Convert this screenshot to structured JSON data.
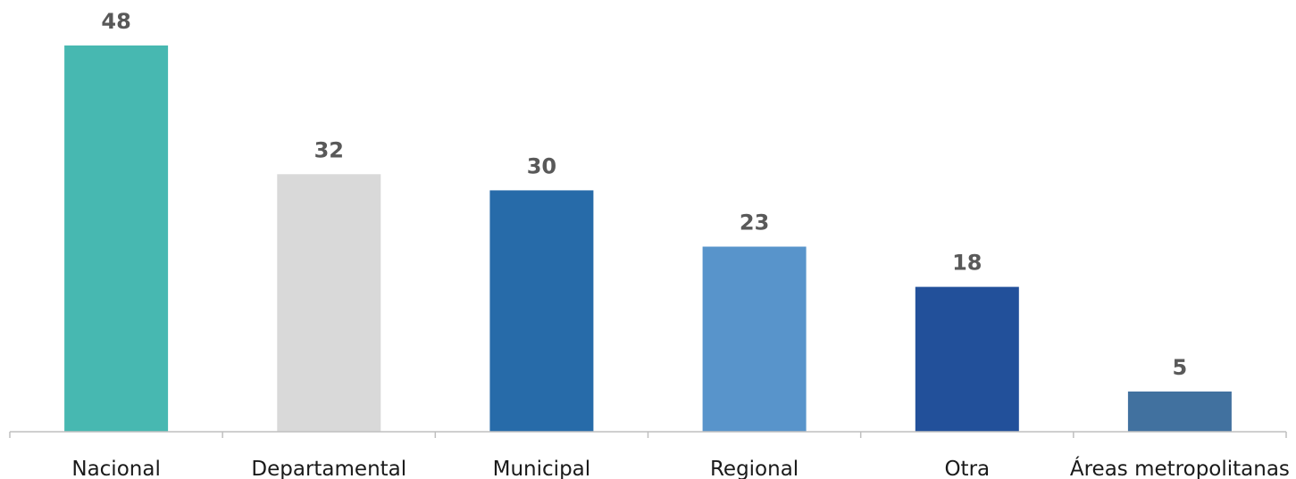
{
  "chart_data": {
    "type": "bar",
    "categories": [
      "Nacional",
      "Departamental",
      "Municipal",
      "Regional",
      "Otra",
      "Áreas metropolitanas"
    ],
    "values": [
      48,
      32,
      30,
      23,
      18,
      5
    ],
    "value_labels": [
      "48",
      "32",
      "30",
      "23",
      "18",
      "5"
    ],
    "colors": [
      "#47b8b1",
      "#d9d9d9",
      "#276ba9",
      "#5894cb",
      "#22509a",
      "#41719f"
    ],
    "title": "",
    "xlabel": "",
    "ylabel": "",
    "ylim": [
      0,
      48
    ],
    "grid": false,
    "legend": "none"
  }
}
